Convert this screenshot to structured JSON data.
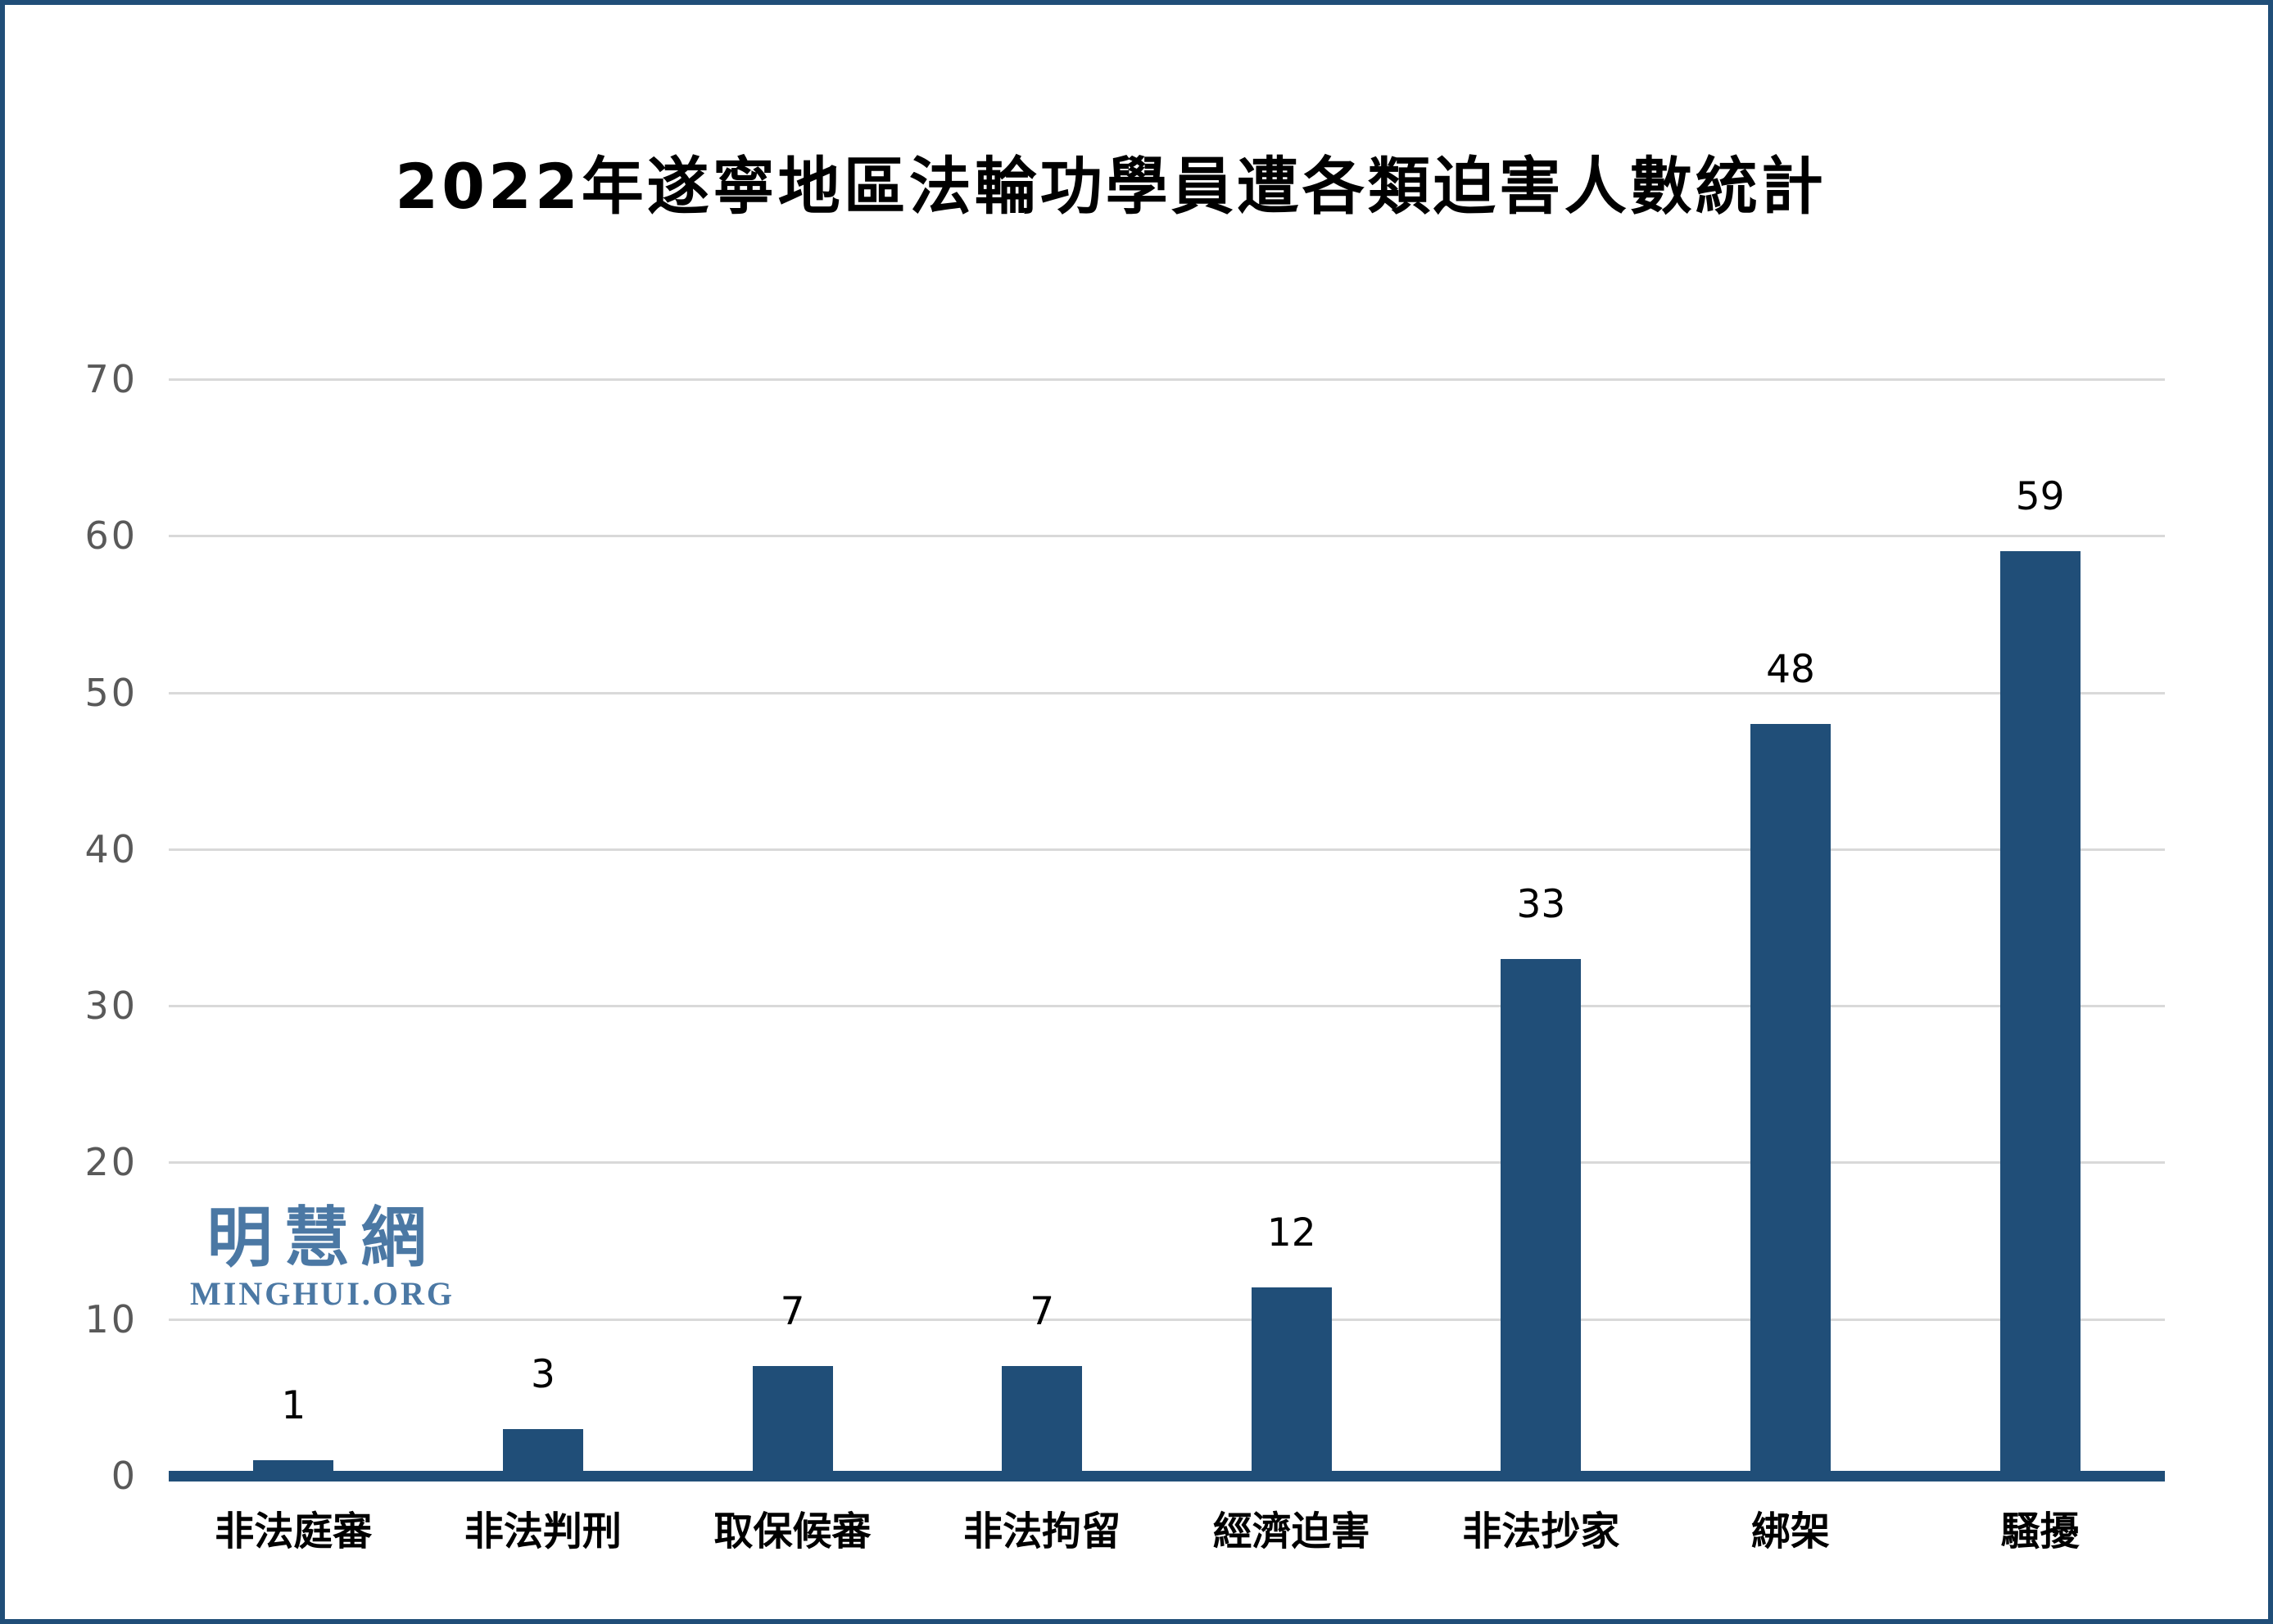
{
  "watermark": {
    "cjk": "明慧網",
    "latin": "MINGHUI.ORG"
  },
  "chart_data": {
    "type": "bar",
    "title": "2022年遂寧地區法輪功學員遭各類迫害人數統計",
    "categories": [
      "非法庭審",
      "非法判刑",
      "取保候審",
      "非法拘留",
      "經濟迫害",
      "非法抄家",
      "綁架",
      "騷擾"
    ],
    "values": [
      1,
      3,
      7,
      7,
      12,
      33,
      48,
      59
    ],
    "value_labels": [
      "1",
      "3",
      "7",
      "7",
      "12",
      "33",
      "48",
      "59"
    ],
    "xlabel": "",
    "ylabel": "",
    "ylim": [
      0,
      70
    ],
    "yticks": [
      0,
      10,
      20,
      30,
      40,
      50,
      60,
      70
    ],
    "grid": true,
    "legend": false,
    "bar_color": "#204E78"
  },
  "colors": {
    "background": "#FFFFFF",
    "frame_border": "#204E78",
    "bar": "#204E78",
    "axis_line": "#204E78",
    "gridline": "#D9D9D9",
    "tick_label": "#595959",
    "value_label": "#000000",
    "category_label": "#000000",
    "watermark": "#4B78A4",
    "title": "#000000"
  }
}
